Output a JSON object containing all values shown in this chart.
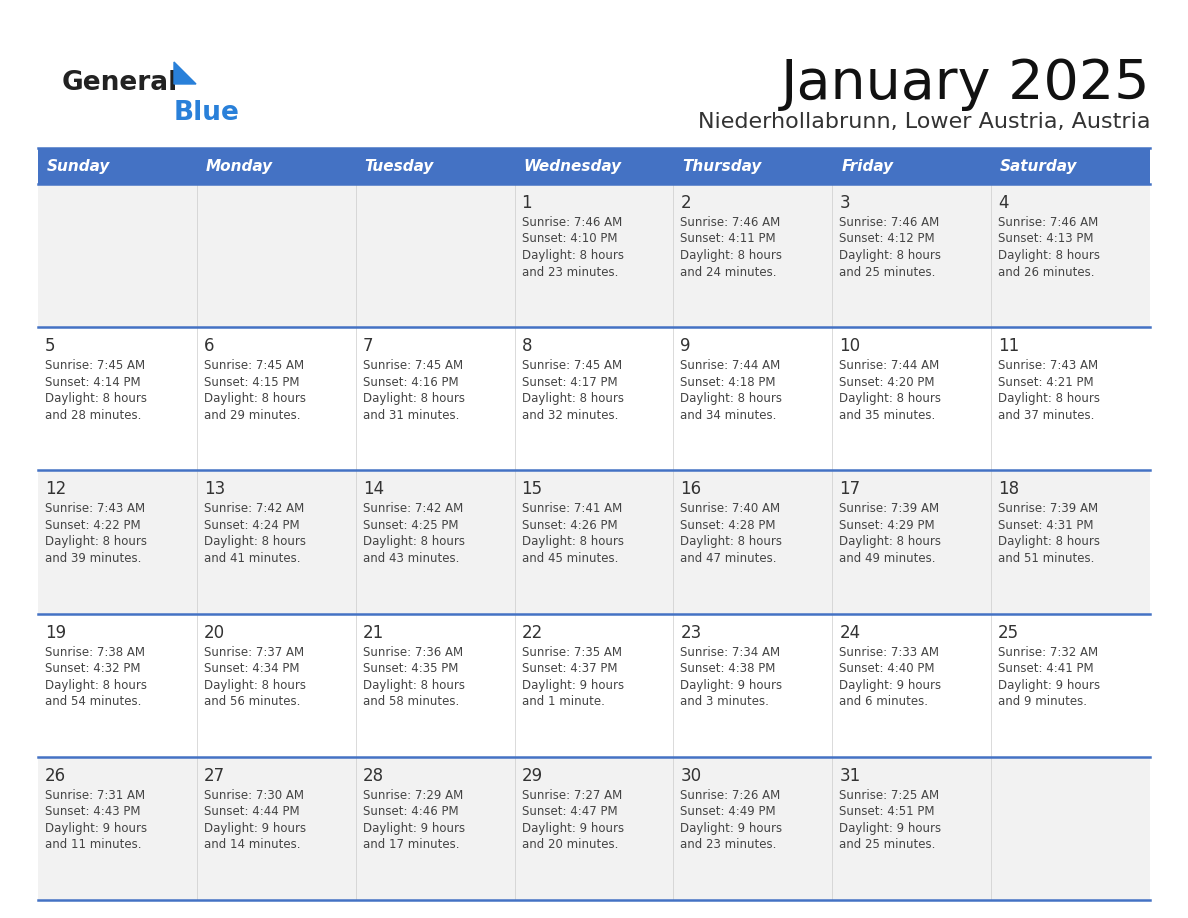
{
  "title": "January 2025",
  "subtitle": "Niederhollabrunn, Lower Austria, Austria",
  "days_of_week": [
    "Sunday",
    "Monday",
    "Tuesday",
    "Wednesday",
    "Thursday",
    "Friday",
    "Saturday"
  ],
  "header_bg": "#4472C4",
  "header_text": "#FFFFFF",
  "row_bg_light": "#F2F2F2",
  "row_bg_white": "#FFFFFF",
  "cell_border_color": "#4472C4",
  "day_num_color": "#333333",
  "info_text_color": "#444444",
  "title_color": "#111111",
  "subtitle_color": "#333333",
  "logo_general_color": "#222222",
  "logo_blue_color": "#2980D9",
  "logo_triangle_color": "#2980D9",
  "calendar": [
    [
      {
        "day": null,
        "info": ""
      },
      {
        "day": null,
        "info": ""
      },
      {
        "day": null,
        "info": ""
      },
      {
        "day": 1,
        "info": "Sunrise: 7:46 AM\nSunset: 4:10 PM\nDaylight: 8 hours\nand 23 minutes."
      },
      {
        "day": 2,
        "info": "Sunrise: 7:46 AM\nSunset: 4:11 PM\nDaylight: 8 hours\nand 24 minutes."
      },
      {
        "day": 3,
        "info": "Sunrise: 7:46 AM\nSunset: 4:12 PM\nDaylight: 8 hours\nand 25 minutes."
      },
      {
        "day": 4,
        "info": "Sunrise: 7:46 AM\nSunset: 4:13 PM\nDaylight: 8 hours\nand 26 minutes."
      }
    ],
    [
      {
        "day": 5,
        "info": "Sunrise: 7:45 AM\nSunset: 4:14 PM\nDaylight: 8 hours\nand 28 minutes."
      },
      {
        "day": 6,
        "info": "Sunrise: 7:45 AM\nSunset: 4:15 PM\nDaylight: 8 hours\nand 29 minutes."
      },
      {
        "day": 7,
        "info": "Sunrise: 7:45 AM\nSunset: 4:16 PM\nDaylight: 8 hours\nand 31 minutes."
      },
      {
        "day": 8,
        "info": "Sunrise: 7:45 AM\nSunset: 4:17 PM\nDaylight: 8 hours\nand 32 minutes."
      },
      {
        "day": 9,
        "info": "Sunrise: 7:44 AM\nSunset: 4:18 PM\nDaylight: 8 hours\nand 34 minutes."
      },
      {
        "day": 10,
        "info": "Sunrise: 7:44 AM\nSunset: 4:20 PM\nDaylight: 8 hours\nand 35 minutes."
      },
      {
        "day": 11,
        "info": "Sunrise: 7:43 AM\nSunset: 4:21 PM\nDaylight: 8 hours\nand 37 minutes."
      }
    ],
    [
      {
        "day": 12,
        "info": "Sunrise: 7:43 AM\nSunset: 4:22 PM\nDaylight: 8 hours\nand 39 minutes."
      },
      {
        "day": 13,
        "info": "Sunrise: 7:42 AM\nSunset: 4:24 PM\nDaylight: 8 hours\nand 41 minutes."
      },
      {
        "day": 14,
        "info": "Sunrise: 7:42 AM\nSunset: 4:25 PM\nDaylight: 8 hours\nand 43 minutes."
      },
      {
        "day": 15,
        "info": "Sunrise: 7:41 AM\nSunset: 4:26 PM\nDaylight: 8 hours\nand 45 minutes."
      },
      {
        "day": 16,
        "info": "Sunrise: 7:40 AM\nSunset: 4:28 PM\nDaylight: 8 hours\nand 47 minutes."
      },
      {
        "day": 17,
        "info": "Sunrise: 7:39 AM\nSunset: 4:29 PM\nDaylight: 8 hours\nand 49 minutes."
      },
      {
        "day": 18,
        "info": "Sunrise: 7:39 AM\nSunset: 4:31 PM\nDaylight: 8 hours\nand 51 minutes."
      }
    ],
    [
      {
        "day": 19,
        "info": "Sunrise: 7:38 AM\nSunset: 4:32 PM\nDaylight: 8 hours\nand 54 minutes."
      },
      {
        "day": 20,
        "info": "Sunrise: 7:37 AM\nSunset: 4:34 PM\nDaylight: 8 hours\nand 56 minutes."
      },
      {
        "day": 21,
        "info": "Sunrise: 7:36 AM\nSunset: 4:35 PM\nDaylight: 8 hours\nand 58 minutes."
      },
      {
        "day": 22,
        "info": "Sunrise: 7:35 AM\nSunset: 4:37 PM\nDaylight: 9 hours\nand 1 minute."
      },
      {
        "day": 23,
        "info": "Sunrise: 7:34 AM\nSunset: 4:38 PM\nDaylight: 9 hours\nand 3 minutes."
      },
      {
        "day": 24,
        "info": "Sunrise: 7:33 AM\nSunset: 4:40 PM\nDaylight: 9 hours\nand 6 minutes."
      },
      {
        "day": 25,
        "info": "Sunrise: 7:32 AM\nSunset: 4:41 PM\nDaylight: 9 hours\nand 9 minutes."
      }
    ],
    [
      {
        "day": 26,
        "info": "Sunrise: 7:31 AM\nSunset: 4:43 PM\nDaylight: 9 hours\nand 11 minutes."
      },
      {
        "day": 27,
        "info": "Sunrise: 7:30 AM\nSunset: 4:44 PM\nDaylight: 9 hours\nand 14 minutes."
      },
      {
        "day": 28,
        "info": "Sunrise: 7:29 AM\nSunset: 4:46 PM\nDaylight: 9 hours\nand 17 minutes."
      },
      {
        "day": 29,
        "info": "Sunrise: 7:27 AM\nSunset: 4:47 PM\nDaylight: 9 hours\nand 20 minutes."
      },
      {
        "day": 30,
        "info": "Sunrise: 7:26 AM\nSunset: 4:49 PM\nDaylight: 9 hours\nand 23 minutes."
      },
      {
        "day": 31,
        "info": "Sunrise: 7:25 AM\nSunset: 4:51 PM\nDaylight: 9 hours\nand 25 minutes."
      },
      {
        "day": null,
        "info": ""
      }
    ]
  ]
}
